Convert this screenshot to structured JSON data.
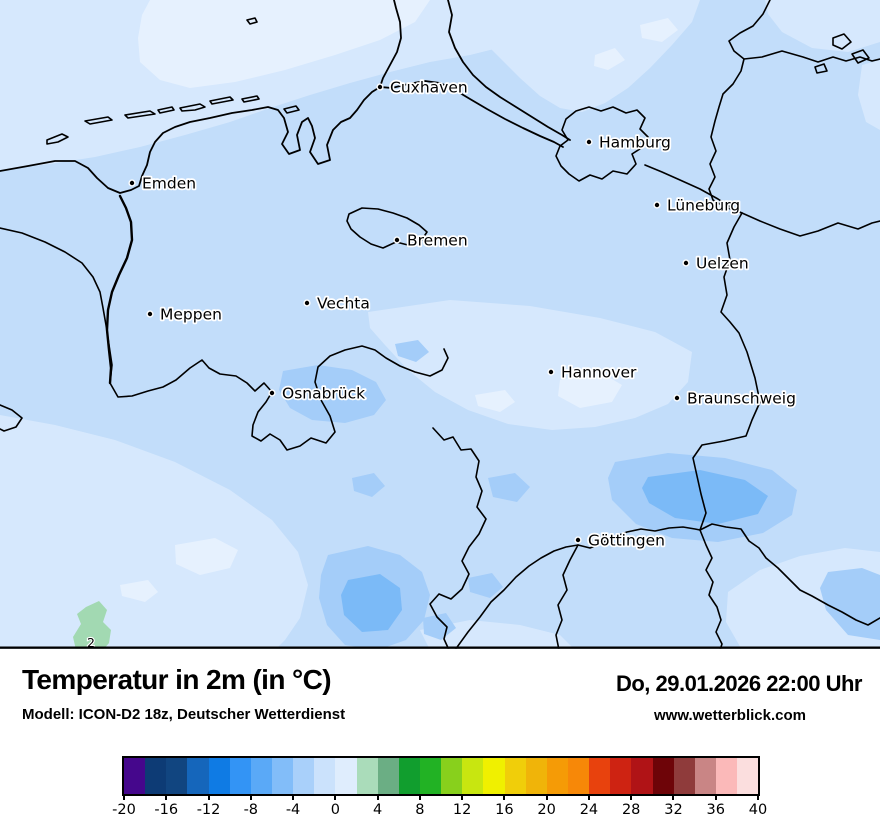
{
  "map": {
    "contour_label": "2",
    "cities": [
      {
        "name": "Cuxhaven"
      },
      {
        "name": "Hamburg"
      },
      {
        "name": "Emden"
      },
      {
        "name": "Lüneburg"
      },
      {
        "name": "Bremen"
      },
      {
        "name": "Uelzen"
      },
      {
        "name": "Meppen"
      },
      {
        "name": "Vechta"
      },
      {
        "name": "Hannover"
      },
      {
        "name": "Osnabrück"
      },
      {
        "name": "Braunschweig"
      },
      {
        "name": "Göttingen"
      }
    ],
    "palette": {
      "base": "#C2DDFA",
      "light": "#D6E8FD",
      "lightest": "#E6F1FE",
      "medium": "#A4CDF9",
      "dark": "#7BBAF7",
      "green": "#A2D9B2",
      "line": "#000000"
    }
  },
  "footer": {
    "title": "Temperatur in 2m (in °C)",
    "datetime": "Do, 29.01.2026 22:00 Uhr",
    "model": "Modell: ICON-D2 18z, Deutscher Wetterdienst",
    "website": "www.wetterblick.com"
  },
  "scale": {
    "min": -20,
    "max": 40,
    "step_per_cell": 2,
    "tick_labels": [
      "-20",
      "-16",
      "-12",
      "-8",
      "-4",
      "0",
      "4",
      "8",
      "12",
      "16",
      "20",
      "24",
      "28",
      "32",
      "36",
      "40"
    ],
    "colors": [
      "#45078C",
      "#0D3B75",
      "#114580",
      "#1566BB",
      "#0F7BE4",
      "#3394F5",
      "#5AA9F7",
      "#82BDF9",
      "#A9D0FA",
      "#CBE2FC",
      "#DFEDFD",
      "#AADCBA",
      "#6BAE84",
      "#119E2E",
      "#22B224",
      "#88D01C",
      "#C8E610",
      "#F0F000",
      "#F0CE0A",
      "#F0B409",
      "#F59B06",
      "#F78808",
      "#E8420D",
      "#CE2312",
      "#B01316",
      "#6E0408",
      "#8F3B3B",
      "#C98585",
      "#FBB9B9",
      "#FBDEDE"
    ]
  }
}
